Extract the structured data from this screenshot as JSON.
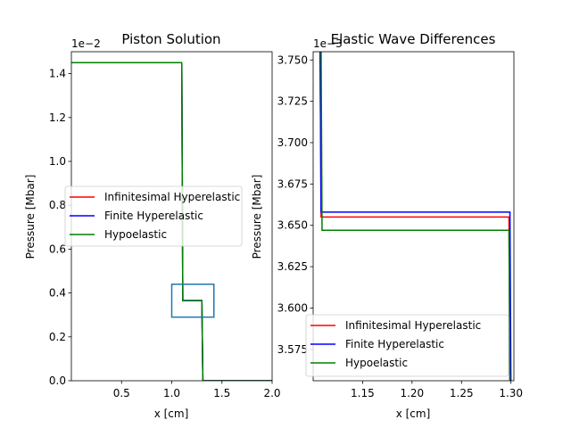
{
  "chart_data": [
    {
      "type": "line",
      "title": "Piston Solution",
      "xlabel": "x [cm]",
      "ylabel": "Pressure [Mbar]",
      "offset_label": "1e−2",
      "xlim": [
        0.0,
        2.0
      ],
      "ylim": [
        0.0,
        1.5
      ],
      "xticks": [
        0.5,
        1.0,
        1.5,
        2.0
      ],
      "xtick_labels": [
        "0.5",
        "1.0",
        "1.5",
        "2.0"
      ],
      "yticks": [
        0.0,
        0.2,
        0.4,
        0.6,
        0.8,
        1.0,
        1.2,
        1.4
      ],
      "ytick_labels": [
        "0.0",
        "0.2",
        "0.4",
        "0.6",
        "0.8",
        "1.0",
        "1.2",
        "1.4"
      ],
      "legend_position": "center-left",
      "series": [
        {
          "name": "Infinitesimal Hyperelastic",
          "color": "#ff0000",
          "x": [
            0.0,
            1.1,
            1.11,
            1.3,
            1.31,
            2.0
          ],
          "y": [
            1.45,
            1.45,
            0.3655,
            0.3655,
            0.0,
            0.0
          ]
        },
        {
          "name": "Finite Hyperelastic",
          "color": "#0000ff",
          "x": [
            0.0,
            1.1,
            1.11,
            1.3,
            1.31,
            2.0
          ],
          "y": [
            1.45,
            1.45,
            0.3658,
            0.3658,
            0.0,
            0.0
          ]
        },
        {
          "name": "Hypoelastic",
          "color": "#008000",
          "x": [
            0.0,
            1.1,
            1.11,
            1.3,
            1.31,
            2.0
          ],
          "y": [
            1.45,
            1.45,
            0.3647,
            0.3647,
            0.0,
            0.0
          ]
        }
      ],
      "inset_box": {
        "x0": 1.0,
        "x1": 1.42,
        "y0": 0.29,
        "y1": 0.44,
        "color": "#1f77b4"
      }
    },
    {
      "type": "line",
      "title": "Elastic Wave Differences",
      "xlabel": "x [cm]",
      "ylabel": "Pressure [Mbar]",
      "offset_label": "1e−3",
      "xlim": [
        1.1,
        1.303
      ],
      "ylim": [
        3.556,
        3.755
      ],
      "xticks": [
        1.15,
        1.2,
        1.25,
        1.3
      ],
      "xtick_labels": [
        "1.15",
        "1.20",
        "1.25",
        "1.30"
      ],
      "yticks": [
        3.575,
        3.6,
        3.625,
        3.65,
        3.675,
        3.7,
        3.725,
        3.75
      ],
      "ytick_labels": [
        "3.575",
        "3.600",
        "3.625",
        "3.650",
        "3.675",
        "3.700",
        "3.725",
        "3.750"
      ],
      "legend_position": "lower-left",
      "series": [
        {
          "name": "Infinitesimal Hyperelastic",
          "color": "#ff0000",
          "x": [
            1.107,
            1.108,
            1.298,
            1.299
          ],
          "y": [
            3.76,
            3.655,
            3.655,
            3.55
          ]
        },
        {
          "name": "Finite Hyperelastic",
          "color": "#0000ff",
          "x": [
            1.107,
            1.108,
            1.299,
            1.3
          ],
          "y": [
            3.76,
            3.658,
            3.658,
            3.55
          ]
        },
        {
          "name": "Hypoelastic",
          "color": "#008000",
          "x": [
            1.108,
            1.109,
            1.298,
            1.299
          ],
          "y": [
            3.76,
            3.647,
            3.647,
            3.55
          ]
        }
      ]
    }
  ]
}
